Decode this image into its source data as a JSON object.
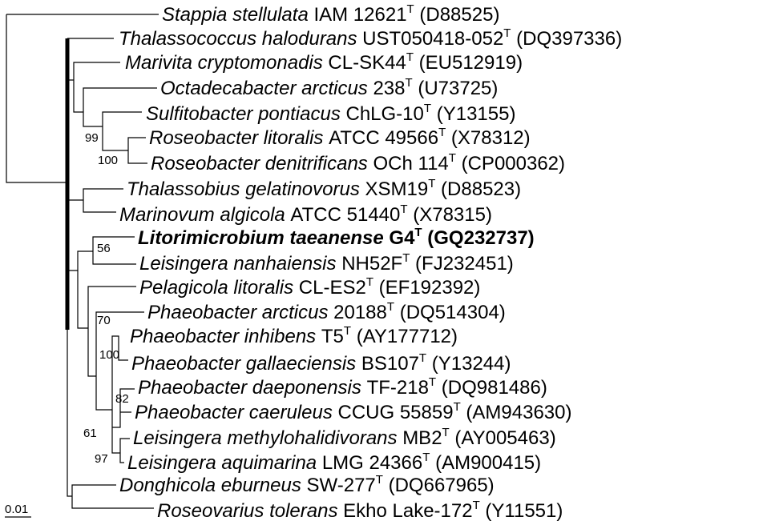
{
  "taxa": [
    {
      "genus": "Stappia stellulata",
      "strain": "IAM 12621",
      "accession": "(D88525)"
    },
    {
      "genus": "Thalassococcus halodurans",
      "strain": "UST050418-052",
      "accession": "(DQ397336)"
    },
    {
      "genus": "Marivita cryptomonadis",
      "strain": "CL-SK44",
      "accession": "(EU512919)"
    },
    {
      "genus": "Octadecabacter arcticus",
      "strain": "238",
      "accession": "(U73725)"
    },
    {
      "genus": "Sulfitobacter pontiacus",
      "strain": "ChLG-10",
      "accession": "(Y13155)"
    },
    {
      "genus": "Roseobacter litoralis",
      "strain": "ATCC 49566",
      "accession": "(X78312)"
    },
    {
      "genus": "Roseobacter denitrificans",
      "strain": "OCh 114",
      "accession": "(CP000362)"
    },
    {
      "genus": "Thalassobius gelatinovorus",
      "strain": "XSM19",
      "accession": "(D88523)"
    },
    {
      "genus": "Marinovum algicola",
      "strain": "ATCC 51440",
      "accession": "(X78315)"
    },
    {
      "genus": "Litorimicrobium taeanense",
      "strain": "G4",
      "accession": "(GQ232737)",
      "highlight": true
    },
    {
      "genus": "Leisingera nanhaiensis",
      "strain": "NH52F",
      "accession": "(FJ232451)"
    },
    {
      "genus": "Pelagicola litoralis",
      "strain": "CL-ES2",
      "accession": "(EF192392)"
    },
    {
      "genus": "Phaeobacter arcticus",
      "strain": "20188",
      "accession": "(DQ514304)"
    },
    {
      "genus": "Phaeobacter inhibens",
      "strain": "T5",
      "accession": "(AY177712)"
    },
    {
      "genus": "Phaeobacter gallaeciensis",
      "strain": "BS107",
      "accession": "(Y13244)"
    },
    {
      "genus": "Phaeobacter daeponensis",
      "strain": "TF-218",
      "accession": "(DQ981486)"
    },
    {
      "genus": "Phaeobacter caeruleus",
      "strain": "CCUG 55859",
      "accession": "(AM943630)"
    },
    {
      "genus": "Leisingera methylohalidivorans",
      "strain": "MB2",
      "accession": "(AY005463)"
    },
    {
      "genus": "Leisingera aquimarina",
      "strain": "LMG 24366",
      "accession": "(AM900415)"
    },
    {
      "genus": "Donghicola eburneus",
      "strain": "SW-277",
      "accession": "(DQ667965)"
    },
    {
      "genus": "Roseovarius tolerans",
      "strain": "Ekho Lake-172",
      "accession": "(Y11551)"
    }
  ],
  "type_strain_mark": "T",
  "bootstrap": [
    "99",
    "100",
    "56",
    "70",
    "100",
    "82",
    "61",
    "97"
  ],
  "scale_bar": "0.01"
}
